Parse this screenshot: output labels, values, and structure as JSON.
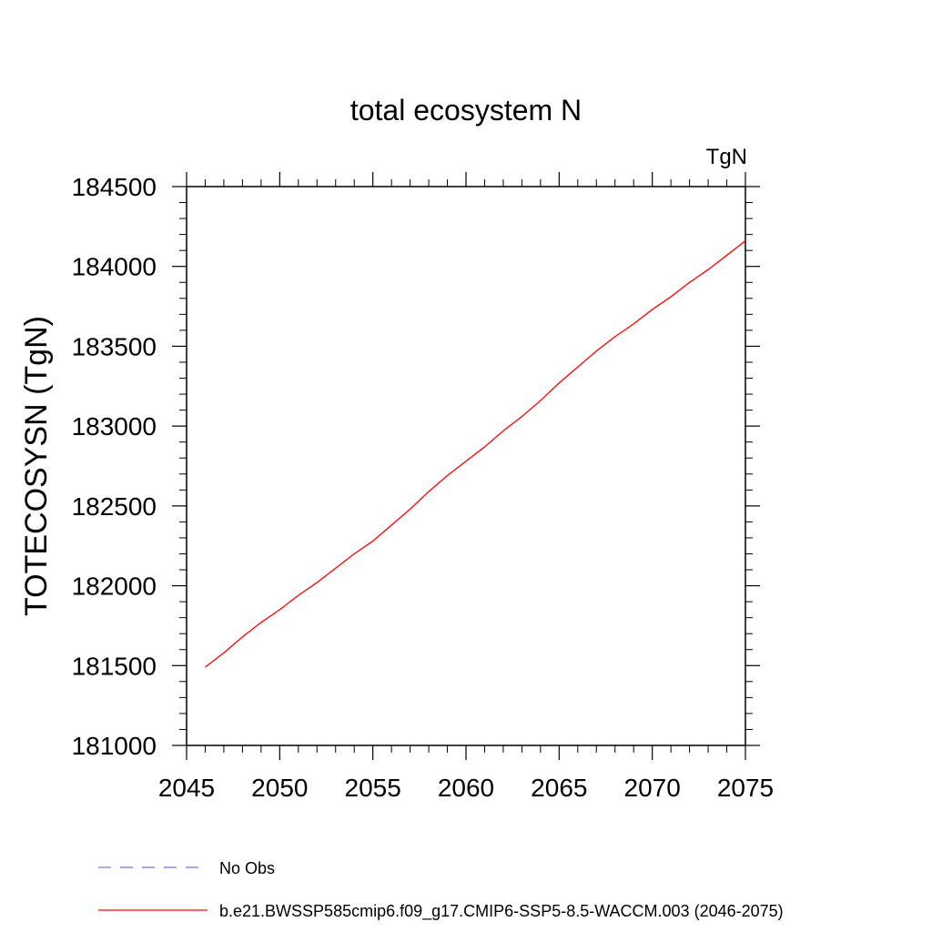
{
  "chart_data": {
    "type": "line",
    "title": "total ecosystem N",
    "units_label": "TgN",
    "ylabel": "TOTECOSYSN  (TgN)",
    "xlabel": "",
    "xlim": [
      2045,
      2075
    ],
    "ylim": [
      181000,
      184500
    ],
    "x_ticks": [
      2045,
      2050,
      2055,
      2060,
      2065,
      2070,
      2075
    ],
    "x_tick_labels": [
      "2045",
      "2050",
      "2055",
      "2060",
      "2065",
      "2070",
      "2075"
    ],
    "y_ticks": [
      181000,
      181500,
      182000,
      182500,
      183000,
      183500,
      184000,
      184500
    ],
    "y_tick_labels": [
      "181000",
      "181500",
      "182000",
      "182500",
      "183000",
      "183500",
      "184000",
      "184500"
    ],
    "x_minor_step": 1,
    "y_minor_step": 100,
    "series": [
      {
        "name": "b.e21.BWSSP585cmip6.f09_g17.CMIP6-SSP5-8.5-WACCM.003 (2046-2075)",
        "color": "#ff0000",
        "style": "solid",
        "x": [
          2046,
          2047,
          2048,
          2049,
          2050,
          2051,
          2052,
          2053,
          2054,
          2055,
          2056,
          2057,
          2058,
          2059,
          2060,
          2061,
          2062,
          2063,
          2064,
          2065,
          2066,
          2067,
          2068,
          2069,
          2070,
          2071,
          2072,
          2073,
          2074,
          2075
        ],
        "values": [
          181490,
          181580,
          181680,
          181770,
          181850,
          181940,
          182020,
          182110,
          182200,
          182280,
          182380,
          182480,
          182590,
          182690,
          182780,
          182870,
          182970,
          183060,
          183160,
          183270,
          183370,
          183470,
          183560,
          183640,
          183730,
          183810,
          183900,
          183980,
          184070,
          184160
        ]
      }
    ],
    "legend": [
      {
        "label": "No Obs",
        "color": "#7b6fb8",
        "style": "dashed"
      },
      {
        "label": "b.e21.BWSSP585cmip6.f09_g17.CMIP6-SSP5-8.5-WACCM.003 (2046-2075)",
        "color": "#ff0000",
        "style": "solid"
      }
    ],
    "legend_position": "bottom-left",
    "grid": false
  }
}
